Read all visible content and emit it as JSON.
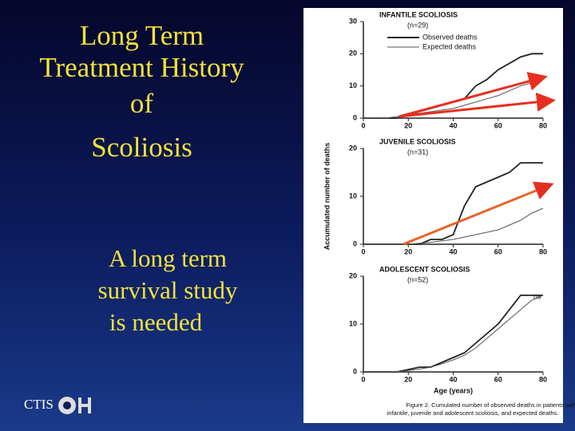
{
  "slide": {
    "title": [
      "Long Term",
      "Treatment History",
      "of",
      "Scoliosis"
    ],
    "subtitle": [
      "A long term",
      "survival study",
      "is needed"
    ],
    "footer": "CTIS"
  },
  "figure": {
    "y_label": "Accumulated number of deaths",
    "caption": [
      "Figure 2. Cumulated number of observed deaths in patients with",
      "infantile, juvenile and adolescent scoliosis, and expected deaths."
    ]
  },
  "chart_data": [
    {
      "type": "line",
      "title": "INFANTILE SCOLIOSIS",
      "subtitle": "(n=29)",
      "x": [
        0,
        10,
        15,
        20,
        25,
        30,
        35,
        40,
        45,
        50,
        55,
        60,
        65,
        70,
        75,
        80
      ],
      "series": [
        {
          "name": "Observed deaths",
          "color": "#222222",
          "values": [
            0,
            0,
            0,
            1,
            2,
            3,
            4,
            5,
            6,
            10,
            12,
            15,
            17,
            19,
            20,
            20
          ]
        },
        {
          "name": "Expected deaths",
          "color": "#555555",
          "values": [
            0,
            0,
            0.5,
            1,
            1.5,
            2,
            2.5,
            3,
            4,
            5,
            6,
            7,
            8.5,
            10,
            11,
            12.5
          ]
        }
      ],
      "xlim": [
        0,
        80
      ],
      "xticks": [
        0,
        20,
        40,
        60,
        80
      ],
      "ylim": [
        0,
        30
      ],
      "yticks": [
        0,
        10,
        20,
        30
      ]
    },
    {
      "type": "line",
      "title": "JUVENILE SCOLIOSIS",
      "subtitle": "(n=31)",
      "x": [
        0,
        10,
        15,
        20,
        25,
        30,
        35,
        40,
        45,
        50,
        55,
        60,
        65,
        70,
        75,
        80
      ],
      "series": [
        {
          "color": "#222222",
          "values": [
            0,
            0,
            0,
            0,
            0,
            1,
            1,
            2,
            8,
            12,
            13,
            14,
            15,
            17,
            17,
            17
          ]
        },
        {
          "color": "#555555",
          "values": [
            0,
            0,
            0,
            0,
            0.2,
            0.4,
            0.7,
            1,
            1.5,
            2,
            2.5,
            3,
            4,
            5,
            6.5,
            7.5
          ]
        }
      ],
      "xlim": [
        0,
        80
      ],
      "xticks": [
        0,
        20,
        40,
        60,
        80
      ],
      "ylim": [
        0,
        20
      ],
      "yticks": [
        0,
        10,
        20
      ]
    },
    {
      "type": "line",
      "title": "ADOLESCENT SCOLIOSIS",
      "subtitle": "(n=52)",
      "annotation": "ns",
      "x_label": "Age (years)",
      "x": [
        0,
        10,
        15,
        20,
        25,
        30,
        35,
        40,
        45,
        50,
        55,
        60,
        65,
        70,
        75,
        80
      ],
      "series": [
        {
          "color": "#222222",
          "values": [
            0,
            0,
            0,
            0.5,
            1,
            1,
            2,
            3,
            4,
            6,
            8,
            10,
            13,
            16,
            16,
            16
          ]
        },
        {
          "color": "#555555",
          "values": [
            0,
            0,
            0,
            0.3,
            0.6,
            1,
            1.7,
            2.5,
            3.5,
            5,
            7,
            9,
            11,
            13,
            15,
            16
          ]
        }
      ],
      "xlim": [
        0,
        80
      ],
      "xticks": [
        0,
        20,
        40,
        60,
        80
      ],
      "ylim": [
        0,
        20
      ],
      "yticks": [
        0,
        10,
        20
      ]
    }
  ]
}
